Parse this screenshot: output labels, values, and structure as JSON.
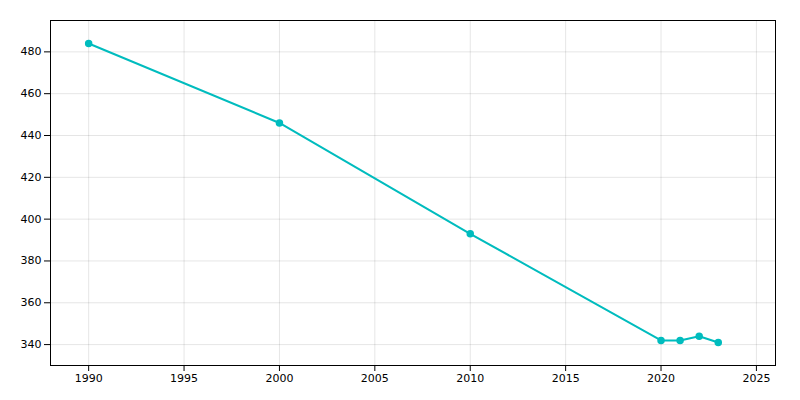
{
  "chart_data": {
    "type": "line",
    "x": [
      1990,
      2000,
      2010,
      2020,
      2021,
      2022,
      2023
    ],
    "values": [
      484,
      446,
      393,
      342,
      342,
      344,
      341
    ],
    "color": "#00BCBE",
    "marker": "circle",
    "xlim": [
      1988,
      2026
    ],
    "ylim": [
      330,
      495
    ],
    "xticks": [
      1990,
      1995,
      2000,
      2005,
      2010,
      2015,
      2020,
      2025
    ],
    "yticks": [
      340,
      360,
      380,
      400,
      420,
      440,
      460,
      480
    ],
    "grid": true
  }
}
